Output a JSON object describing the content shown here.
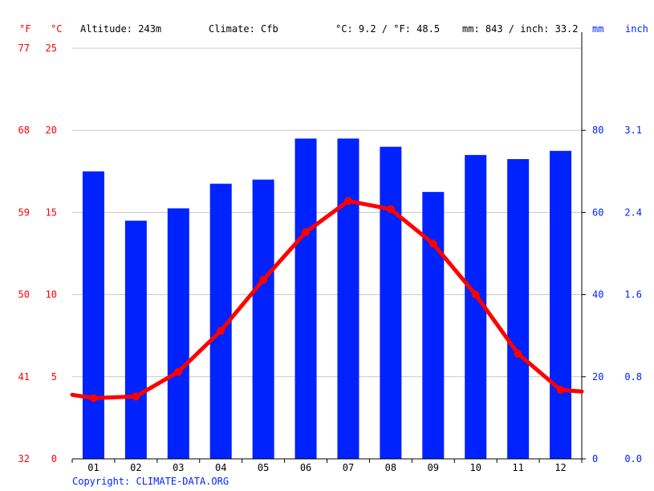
{
  "header": {
    "unit_f": "°F",
    "unit_c": "°C",
    "altitude": "Altitude: 243m",
    "climate": "Climate: Cfb",
    "temp_avg": "°C: 9.2 / °F: 48.5",
    "precip_total": "mm: 843 / inch: 33.2",
    "unit_mm": "mm",
    "unit_inch": "inch"
  },
  "footer": {
    "copyright": "Copyright: CLIMATE-DATA.ORG"
  },
  "colors": {
    "temperature": "#ff0000",
    "precipitation": "#0022ff",
    "grid": "#c8c8c8",
    "axis": "#000000"
  },
  "chart_data": {
    "type": "bar+line",
    "categories": [
      "01",
      "02",
      "03",
      "04",
      "05",
      "06",
      "07",
      "08",
      "09",
      "10",
      "11",
      "12"
    ],
    "series": [
      {
        "type": "bar",
        "axis": "right",
        "values": [
          70,
          58,
          61,
          67,
          68,
          78,
          78,
          76,
          65,
          74,
          73,
          75
        ]
      },
      {
        "type": "line",
        "axis": "left",
        "values": [
          3.7,
          3.8,
          5.3,
          7.8,
          10.9,
          13.8,
          15.7,
          15.2,
          13.1,
          10.0,
          6.4,
          4.2
        ],
        "edge_left": 3.9,
        "edge_right": 4.1
      }
    ],
    "left_axis_c": {
      "ticks": [
        "0",
        "5",
        "10",
        "15",
        "20",
        "25"
      ],
      "values": [
        0,
        5,
        10,
        15,
        20,
        25
      ],
      "ylim": [
        0,
        25
      ]
    },
    "left_axis_f": {
      "ticks": [
        "32",
        "41",
        "50",
        "59",
        "68",
        "77"
      ]
    },
    "right_axis_mm": {
      "ticks": [
        "0",
        "20",
        "40",
        "60",
        "80"
      ],
      "values": [
        0,
        20,
        40,
        60,
        80
      ],
      "ylim": [
        0,
        100
      ]
    },
    "right_axis_inch": {
      "ticks": [
        "0.0",
        "0.8",
        "1.6",
        "2.4",
        "3.1"
      ]
    },
    "grid": true
  }
}
